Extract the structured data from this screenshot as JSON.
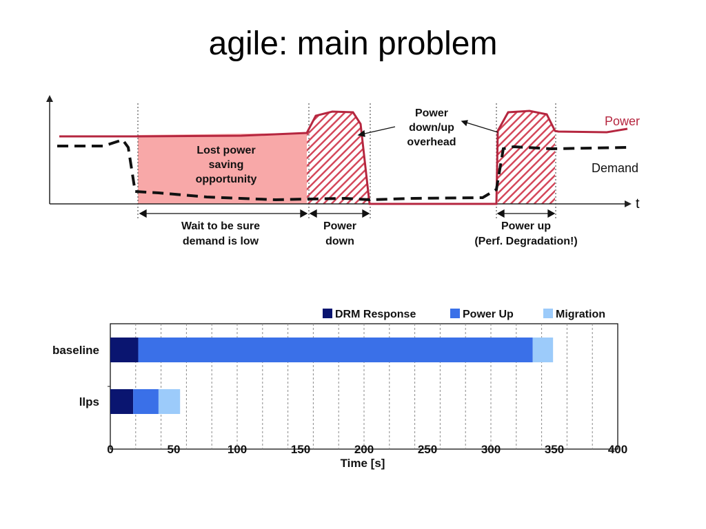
{
  "slide": {
    "title": "agile: main problem"
  },
  "colors": {
    "power_line": "#b5263f",
    "power_fill": "#f8a8a8",
    "hatch": "#d4475a",
    "drm": "#0a1570",
    "powerup": "#3a70e8",
    "migration": "#9ccbfa"
  },
  "diagram": {
    "axis_t_label": "t",
    "legend_power": "Power",
    "legend_demand": "Demand",
    "label_lost": [
      "Lost power",
      "saving",
      "opportunity"
    ],
    "label_overhead": [
      "Power",
      "down/up",
      "overhead"
    ],
    "label_wait": [
      "Wait to be sure",
      "demand is low"
    ],
    "label_powerdown": [
      "Power",
      "down"
    ],
    "label_powerup": [
      "Power up",
      "(Perf. Degradation!)"
    ]
  },
  "chart_data": {
    "type": "bar",
    "orientation": "horizontal",
    "stacked": true,
    "categories": [
      "baseline",
      "llps"
    ],
    "series": [
      {
        "name": "DRM Response",
        "values": [
          22,
          18
        ],
        "color": "#0a1570"
      },
      {
        "name": "Power Up",
        "values": [
          311,
          20
        ],
        "color": "#3a70e8"
      },
      {
        "name": "Migration",
        "values": [
          16,
          17
        ],
        "color": "#9ccbfa"
      }
    ],
    "xlabel": "Time [s]",
    "xlim": [
      0,
      400
    ],
    "xticks": [
      0,
      50,
      100,
      150,
      200,
      250,
      300,
      350,
      400
    ],
    "grid": "vertical dashed every 20",
    "legend_position": "top-right"
  }
}
